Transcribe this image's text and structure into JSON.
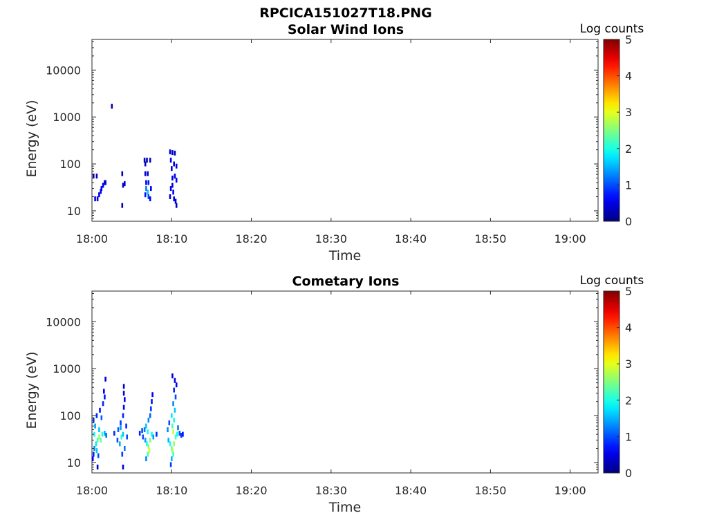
{
  "figure": {
    "title": "RPCICA151027T18.PNG"
  },
  "colorbar": {
    "label": "Log counts",
    "ticks": [
      "0",
      "1",
      "2",
      "3",
      "4",
      "5"
    ],
    "range": [
      0,
      5
    ],
    "colormap": "jet"
  },
  "chart_data": [
    {
      "type": "heatmap",
      "title": "Solar Wind Ions",
      "xlabel": "Time",
      "ylabel": "Energy (eV)",
      "x_ticks": [
        "18:00",
        "18:10",
        "18:20",
        "18:30",
        "18:40",
        "18:50",
        "19:00"
      ],
      "y_ticks": [
        "10",
        "100",
        "1000",
        "10000"
      ],
      "xlim_minutes": [
        0,
        63.5
      ],
      "ylim": [
        6,
        45000
      ],
      "y_scale": "log",
      "color_scale": "log counts 0-5",
      "points": [
        [
          0.2,
          55,
          0.3
        ],
        [
          0.6,
          55,
          0.3
        ],
        [
          0.4,
          18,
          0.5
        ],
        [
          0.7,
          18,
          0.5
        ],
        [
          0.9,
          22,
          0.6
        ],
        [
          1.1,
          26,
          0.5
        ],
        [
          1.2,
          30,
          0.6
        ],
        [
          1.4,
          35,
          0.5
        ],
        [
          1.6,
          40,
          0.5
        ],
        [
          1.7,
          40,
          0.4
        ],
        [
          2.5,
          1700,
          0.3
        ],
        [
          3.8,
          62,
          0.3
        ],
        [
          3.9,
          35,
          0.4
        ],
        [
          4.1,
          38,
          0.4
        ],
        [
          3.8,
          13,
          0.3
        ],
        [
          6.6,
          120,
          0.3
        ],
        [
          6.9,
          120,
          0.3
        ],
        [
          7.3,
          120,
          0.4
        ],
        [
          6.7,
          100,
          0.3
        ],
        [
          6.7,
          62,
          0.4
        ],
        [
          7.0,
          62,
          0.4
        ],
        [
          6.8,
          40,
          0.6
        ],
        [
          7.1,
          40,
          0.7
        ],
        [
          6.8,
          30,
          1.2
        ],
        [
          7.0,
          25,
          1.6
        ],
        [
          7.1,
          20,
          1.0
        ],
        [
          7.3,
          18,
          0.6
        ],
        [
          6.7,
          22,
          0.7
        ],
        [
          7.4,
          30,
          0.6
        ],
        [
          9.8,
          180,
          0.4
        ],
        [
          10.1,
          175,
          0.4
        ],
        [
          10.4,
          170,
          0.3
        ],
        [
          9.9,
          120,
          0.5
        ],
        [
          10.0,
          80,
          0.4
        ],
        [
          10.3,
          100,
          0.4
        ],
        [
          10.6,
          90,
          0.4
        ],
        [
          10.1,
          50,
          0.5
        ],
        [
          10.4,
          55,
          0.5
        ],
        [
          10.6,
          45,
          0.6
        ],
        [
          9.9,
          30,
          0.5
        ],
        [
          10.2,
          25,
          0.6
        ],
        [
          9.8,
          20,
          0.4
        ],
        [
          10.3,
          18,
          0.5
        ],
        [
          10.5,
          16,
          0.4
        ],
        [
          10.6,
          13,
          0.3
        ],
        [
          10.1,
          35,
          0.5
        ]
      ]
    },
    {
      "type": "heatmap",
      "title": "Cometary Ions",
      "xlabel": "Time",
      "ylabel": "Energy (eV)",
      "x_ticks": [
        "18:00",
        "18:10",
        "18:20",
        "18:30",
        "18:40",
        "18:50",
        "19:00"
      ],
      "y_ticks": [
        "10",
        "100",
        "1000",
        "10000"
      ],
      "xlim_minutes": [
        0,
        63.5
      ],
      "ylim": [
        6,
        45000
      ],
      "y_scale": "log",
      "color_scale": "log counts 0-5",
      "points": [
        [
          0.2,
          15,
          0.8
        ],
        [
          0.3,
          20,
          1.3
        ],
        [
          0.5,
          25,
          1.8
        ],
        [
          0.7,
          30,
          2.2
        ],
        [
          0.9,
          35,
          2.6
        ],
        [
          1.1,
          30,
          2.4
        ],
        [
          1.3,
          40,
          2.0
        ],
        [
          0.6,
          18,
          1.6
        ],
        [
          0.8,
          14,
          1.0
        ],
        [
          0.9,
          50,
          1.6
        ],
        [
          0.4,
          60,
          1.4
        ],
        [
          0.2,
          80,
          0.9
        ],
        [
          0.6,
          100,
          0.8
        ],
        [
          1.0,
          130,
          0.7
        ],
        [
          1.4,
          180,
          0.8
        ],
        [
          1.6,
          250,
          0.7
        ],
        [
          1.5,
          330,
          0.6
        ],
        [
          1.7,
          600,
          0.4
        ],
        [
          1.2,
          90,
          1.1
        ],
        [
          0.3,
          40,
          1.9
        ],
        [
          1.6,
          42,
          1.5
        ],
        [
          1.8,
          38,
          1.2
        ],
        [
          0.1,
          12,
          0.6
        ],
        [
          0.7,
          8,
          0.4
        ],
        [
          2.8,
          42,
          0.8
        ],
        [
          3.2,
          30,
          1.0
        ],
        [
          3.5,
          25,
          1.5
        ],
        [
          3.7,
          35,
          2.1
        ],
        [
          3.9,
          40,
          1.6
        ],
        [
          4.1,
          20,
          1.2
        ],
        [
          3.8,
          15,
          0.9
        ],
        [
          3.9,
          8,
          0.5
        ],
        [
          3.6,
          70,
          0.9
        ],
        [
          3.9,
          100,
          0.8
        ],
        [
          4.0,
          150,
          0.6
        ],
        [
          4.1,
          220,
          0.5
        ],
        [
          4.0,
          300,
          0.5
        ],
        [
          4.0,
          420,
          0.4
        ],
        [
          4.3,
          60,
          0.8
        ],
        [
          4.4,
          35,
          1.0
        ],
        [
          3.3,
          50,
          1.1
        ],
        [
          3.6,
          55,
          1.4
        ],
        [
          6.0,
          42,
          0.8
        ],
        [
          6.4,
          35,
          1.0
        ],
        [
          6.7,
          30,
          1.4
        ],
        [
          6.9,
          25,
          2.0
        ],
        [
          7.1,
          22,
          2.6
        ],
        [
          7.2,
          18,
          2.9
        ],
        [
          7.0,
          15,
          2.2
        ],
        [
          6.8,
          12,
          1.3
        ],
        [
          7.3,
          30,
          2.5
        ],
        [
          7.5,
          40,
          1.9
        ],
        [
          7.7,
          35,
          1.4
        ],
        [
          7.0,
          45,
          2.0
        ],
        [
          6.8,
          60,
          1.6
        ],
        [
          7.1,
          80,
          1.3
        ],
        [
          7.3,
          100,
          1.1
        ],
        [
          7.4,
          140,
          0.9
        ],
        [
          7.5,
          200,
          0.7
        ],
        [
          7.6,
          280,
          0.6
        ],
        [
          8.1,
          40,
          0.8
        ],
        [
          6.6,
          50,
          1.2
        ],
        [
          6.3,
          48,
          1.0
        ],
        [
          9.6,
          30,
          1.5
        ],
        [
          9.8,
          25,
          2.0
        ],
        [
          10.0,
          20,
          2.4
        ],
        [
          10.1,
          18,
          2.7
        ],
        [
          10.2,
          15,
          2.2
        ],
        [
          10.0,
          12,
          1.5
        ],
        [
          9.9,
          9,
          0.9
        ],
        [
          10.3,
          25,
          2.6
        ],
        [
          10.5,
          35,
          2.3
        ],
        [
          10.7,
          40,
          1.9
        ],
        [
          10.2,
          45,
          2.8
        ],
        [
          10.1,
          60,
          2.2
        ],
        [
          10.3,
          80,
          2.0
        ],
        [
          10.0,
          100,
          1.8
        ],
        [
          10.4,
          130,
          1.6
        ],
        [
          10.2,
          180,
          1.3
        ],
        [
          10.5,
          250,
          1.0
        ],
        [
          10.3,
          350,
          0.8
        ],
        [
          10.6,
          450,
          0.6
        ],
        [
          10.1,
          700,
          0.4
        ],
        [
          10.4,
          560,
          0.5
        ],
        [
          11.0,
          42,
          1.0
        ],
        [
          11.2,
          38,
          0.9
        ],
        [
          11.4,
          40,
          0.7
        ],
        [
          9.5,
          50,
          1.3
        ],
        [
          10.8,
          55,
          1.2
        ],
        [
          9.7,
          70,
          1.0
        ]
      ]
    }
  ]
}
